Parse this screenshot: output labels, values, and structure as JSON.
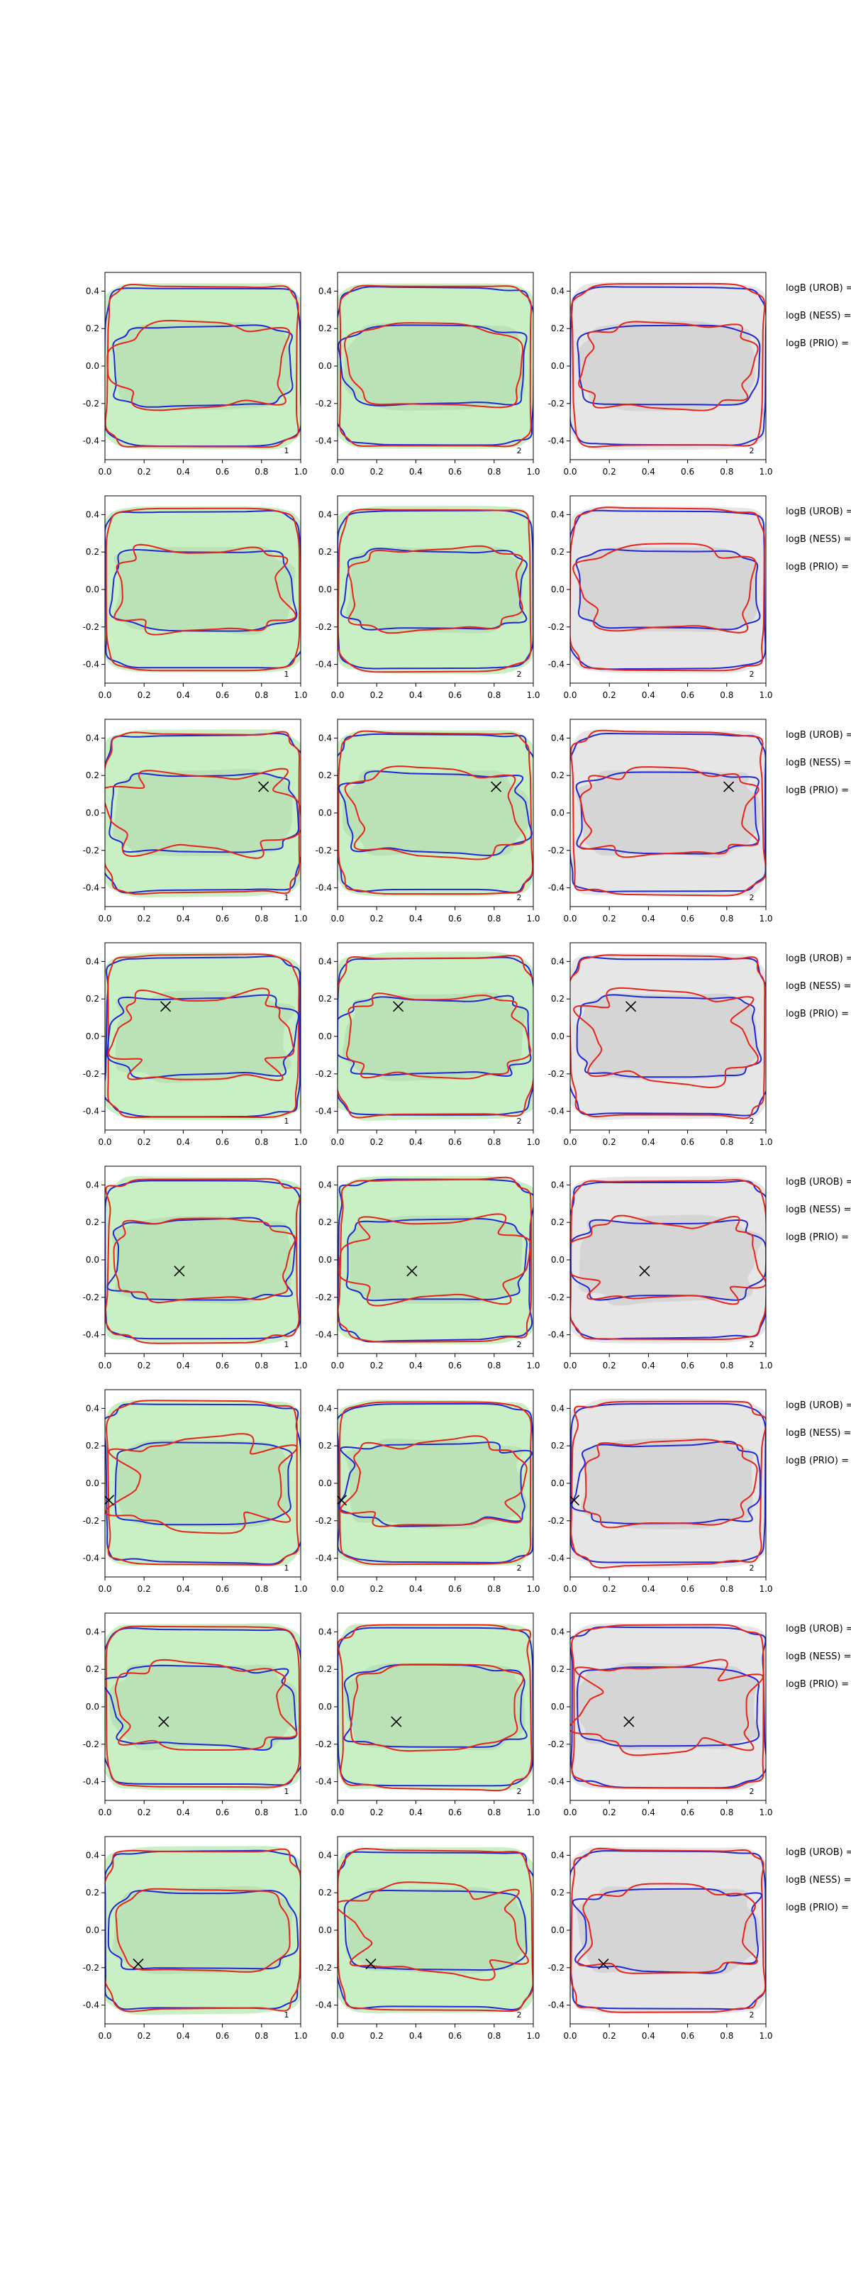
{
  "chart_data": {
    "type": "contour",
    "layout": {
      "rows": 8,
      "columns": 3
    },
    "xlim": [
      0,
      1.0
    ],
    "ylim": [
      -0.5,
      0.5
    ],
    "xticks": [
      "0.0",
      "0.2",
      "0.4",
      "0.6",
      "0.8",
      "1.0"
    ],
    "yticks": [
      "-0.4",
      "-0.2",
      "0.0",
      "0.2",
      "0.4"
    ],
    "colors": {
      "red_contour": "#e8231a",
      "blue_contour": "#1f28d8",
      "green_fill": "#c9f0c4",
      "green_fill_dark": "#b5dcb2",
      "gray_fill": "#e6e6e6",
      "gray_fill_dark": "#cfcfcf",
      "marker": "#000000"
    },
    "panel_tags": [
      "1",
      "2",
      "2"
    ],
    "panel_fill": [
      "green",
      "green",
      "gray"
    ],
    "side_labels": [
      "logB (UROB) =",
      "logB (NESS) =",
      "logB (PRIO) ="
    ],
    "rows": [
      {
        "marker": null
      },
      {
        "marker": null
      },
      {
        "marker": {
          "x": 0.81,
          "y": 0.14
        }
      },
      {
        "marker": {
          "x": 0.31,
          "y": 0.16
        }
      },
      {
        "marker": {
          "x": 0.38,
          "y": -0.06
        }
      },
      {
        "marker": {
          "x": 0.02,
          "y": -0.09
        }
      },
      {
        "marker": {
          "x": 0.3,
          "y": -0.08
        }
      },
      {
        "marker": {
          "x": 0.17,
          "y": -0.18
        }
      }
    ]
  }
}
